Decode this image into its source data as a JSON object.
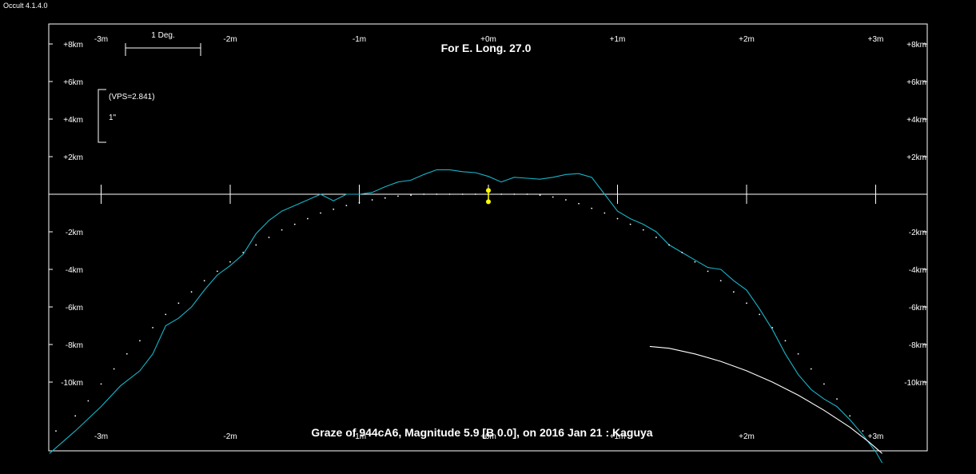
{
  "app": {
    "title": "Occult 4.1.4.0"
  },
  "chart_data": {
    "type": "line",
    "title": "For E. Long. 27.0",
    "caption": "Graze of  944cA6,  Magnitude 5.9 [B 0.0],  on 2016 Jan 21 :  Kaguya",
    "scale_bar_label": "1 Deg.",
    "vps_label": "(VPS=2.841)",
    "vps_unit_label": "1\"",
    "x_ticks": [
      {
        "value": -3,
        "label": "-3m"
      },
      {
        "value": -2,
        "label": "-2m"
      },
      {
        "value": -1,
        "label": "-1m"
      },
      {
        "value": 0,
        "label": "+0m"
      },
      {
        "value": 1,
        "label": "+1m"
      },
      {
        "value": 2,
        "label": "+2m"
      },
      {
        "value": 3,
        "label": "+3m"
      }
    ],
    "y_ticks_left": [
      {
        "value": 8,
        "label": "+8km"
      },
      {
        "value": 6,
        "label": "+6km"
      },
      {
        "value": 4,
        "label": "+4km"
      },
      {
        "value": 2,
        "label": "+2km"
      },
      {
        "value": -2,
        "label": "-2km"
      },
      {
        "value": -4,
        "label": "-4km"
      },
      {
        "value": -6,
        "label": "-6km"
      },
      {
        "value": -8,
        "label": "-8km"
      },
      {
        "value": -10,
        "label": "-10km"
      }
    ],
    "y_ticks_right": [
      {
        "value": 8,
        "label": "+8km"
      },
      {
        "value": 6,
        "label": "+6km"
      },
      {
        "value": 4,
        "label": "+4km"
      },
      {
        "value": 2,
        "label": "+2km"
      },
      {
        "value": -2,
        "label": "-2km"
      },
      {
        "value": -4,
        "label": "-4km"
      },
      {
        "value": -6,
        "label": "-6km"
      },
      {
        "value": -8,
        "label": "-8km"
      },
      {
        "value": -10,
        "label": "-10km"
      }
    ],
    "xlim": [
      -3.4,
      3.4
    ],
    "ylim": [
      -13.7,
      9.2
    ],
    "colors": {
      "limb_profile": "#18b4c8",
      "mean_limb": "#ffffff",
      "star": "#ffff00",
      "background": "#000000"
    },
    "series": [
      {
        "kind": "limb_profile",
        "color": "#18b4c8",
        "points": [
          [
            -3.4,
            -13.8
          ],
          [
            -3.2,
            -12.6
          ],
          [
            -3.0,
            -11.3
          ],
          [
            -2.85,
            -10.2
          ],
          [
            -2.7,
            -9.4
          ],
          [
            -2.6,
            -8.5
          ],
          [
            -2.5,
            -7.0
          ],
          [
            -2.4,
            -6.6
          ],
          [
            -2.3,
            -6.0
          ],
          [
            -2.2,
            -5.1
          ],
          [
            -2.1,
            -4.3
          ],
          [
            -2.0,
            -3.8
          ],
          [
            -1.9,
            -3.2
          ],
          [
            -1.8,
            -2.1
          ],
          [
            -1.7,
            -1.4
          ],
          [
            -1.6,
            -0.9
          ],
          [
            -1.5,
            -0.6
          ],
          [
            -1.4,
            -0.3
          ],
          [
            -1.3,
            0.0
          ],
          [
            -1.2,
            -0.35
          ],
          [
            -1.1,
            0.0
          ],
          [
            -1.0,
            0.0
          ],
          [
            -0.9,
            0.1
          ],
          [
            -0.8,
            0.4
          ],
          [
            -0.7,
            0.65
          ],
          [
            -0.6,
            0.75
          ],
          [
            -0.5,
            1.05
          ],
          [
            -0.4,
            1.3
          ],
          [
            -0.3,
            1.3
          ],
          [
            -0.2,
            1.2
          ],
          [
            -0.1,
            1.15
          ],
          [
            0.0,
            0.95
          ],
          [
            0.1,
            0.65
          ],
          [
            0.2,
            0.9
          ],
          [
            0.3,
            0.85
          ],
          [
            0.4,
            0.8
          ],
          [
            0.5,
            0.9
          ],
          [
            0.6,
            1.05
          ],
          [
            0.7,
            1.1
          ],
          [
            0.8,
            0.9
          ],
          [
            0.9,
            0.0
          ],
          [
            1.0,
            -0.9
          ],
          [
            1.1,
            -1.3
          ],
          [
            1.2,
            -1.6
          ],
          [
            1.3,
            -2.0
          ],
          [
            1.4,
            -2.7
          ],
          [
            1.5,
            -3.1
          ],
          [
            1.6,
            -3.5
          ],
          [
            1.7,
            -3.9
          ],
          [
            1.8,
            -4.0
          ],
          [
            1.9,
            -4.6
          ],
          [
            2.0,
            -5.1
          ],
          [
            2.1,
            -6.1
          ],
          [
            2.2,
            -7.2
          ],
          [
            2.3,
            -8.5
          ],
          [
            2.4,
            -9.6
          ],
          [
            2.5,
            -10.4
          ],
          [
            2.6,
            -10.9
          ],
          [
            2.7,
            -11.3
          ],
          [
            2.8,
            -12.0
          ],
          [
            2.9,
            -12.8
          ],
          [
            3.0,
            -13.7
          ],
          [
            3.05,
            -14.3
          ]
        ]
      },
      {
        "kind": "mean_limb",
        "color": "#ffffff",
        "points": [
          [
            -3.35,
            -12.6
          ],
          [
            -3.2,
            -11.8
          ],
          [
            -3.1,
            -11.0
          ],
          [
            -3.0,
            -10.1
          ],
          [
            -2.9,
            -9.3
          ],
          [
            -2.8,
            -8.5
          ],
          [
            -2.7,
            -7.8
          ],
          [
            -2.6,
            -7.1
          ],
          [
            -2.5,
            -6.4
          ],
          [
            -2.4,
            -5.8
          ],
          [
            -2.3,
            -5.2
          ],
          [
            -2.2,
            -4.6
          ],
          [
            -2.1,
            -4.1
          ],
          [
            -2.0,
            -3.6
          ],
          [
            -1.9,
            -3.1
          ],
          [
            -1.8,
            -2.7
          ],
          [
            -1.7,
            -2.3
          ],
          [
            -1.6,
            -1.9
          ],
          [
            -1.5,
            -1.6
          ],
          [
            -1.4,
            -1.3
          ],
          [
            -1.3,
            -1.0
          ],
          [
            -1.2,
            -0.8
          ],
          [
            -1.1,
            -0.6
          ],
          [
            -1.0,
            -0.45
          ],
          [
            -0.9,
            -0.3
          ],
          [
            -0.8,
            -0.2
          ],
          [
            -0.7,
            -0.1
          ],
          [
            -0.6,
            -0.05
          ],
          [
            -0.5,
            0.0
          ],
          [
            -0.4,
            0.0
          ],
          [
            -0.3,
            0.0
          ],
          [
            -0.2,
            0.0
          ],
          [
            -0.1,
            0.0
          ],
          [
            0.0,
            0.0
          ],
          [
            0.1,
            0.0
          ],
          [
            0.2,
            0.0
          ],
          [
            0.3,
            0.0
          ],
          [
            0.4,
            -0.05
          ],
          [
            0.5,
            -0.15
          ],
          [
            0.6,
            -0.3
          ],
          [
            0.7,
            -0.5
          ],
          [
            0.8,
            -0.75
          ],
          [
            0.9,
            -1.0
          ],
          [
            1.0,
            -1.3
          ],
          [
            1.1,
            -1.6
          ],
          [
            1.2,
            -1.9
          ],
          [
            1.3,
            -2.3
          ],
          [
            1.4,
            -2.7
          ],
          [
            1.5,
            -3.1
          ],
          [
            1.6,
            -3.6
          ],
          [
            1.7,
            -4.1
          ],
          [
            1.8,
            -4.6
          ],
          [
            1.9,
            -5.2
          ],
          [
            2.0,
            -5.8
          ],
          [
            2.1,
            -6.4
          ],
          [
            2.2,
            -7.1
          ],
          [
            2.3,
            -7.8
          ],
          [
            2.4,
            -8.5
          ],
          [
            2.5,
            -9.3
          ],
          [
            2.6,
            -10.1
          ],
          [
            2.7,
            -10.9
          ],
          [
            2.8,
            -11.8
          ],
          [
            2.9,
            -12.6
          ]
        ]
      },
      {
        "kind": "sun_terminator",
        "color": "#ffffff",
        "points": [
          [
            1.25,
            -8.1
          ],
          [
            1.4,
            -8.2
          ],
          [
            1.6,
            -8.5
          ],
          [
            1.8,
            -8.9
          ],
          [
            2.0,
            -9.4
          ],
          [
            2.2,
            -10.0
          ],
          [
            2.4,
            -10.7
          ],
          [
            2.6,
            -11.5
          ],
          [
            2.8,
            -12.4
          ],
          [
            2.95,
            -13.2
          ],
          [
            3.05,
            -13.8
          ]
        ]
      }
    ],
    "star_points": [
      {
        "x": 0.0,
        "y": 0.2
      },
      {
        "x": 0.0,
        "y": -0.4
      }
    ]
  }
}
